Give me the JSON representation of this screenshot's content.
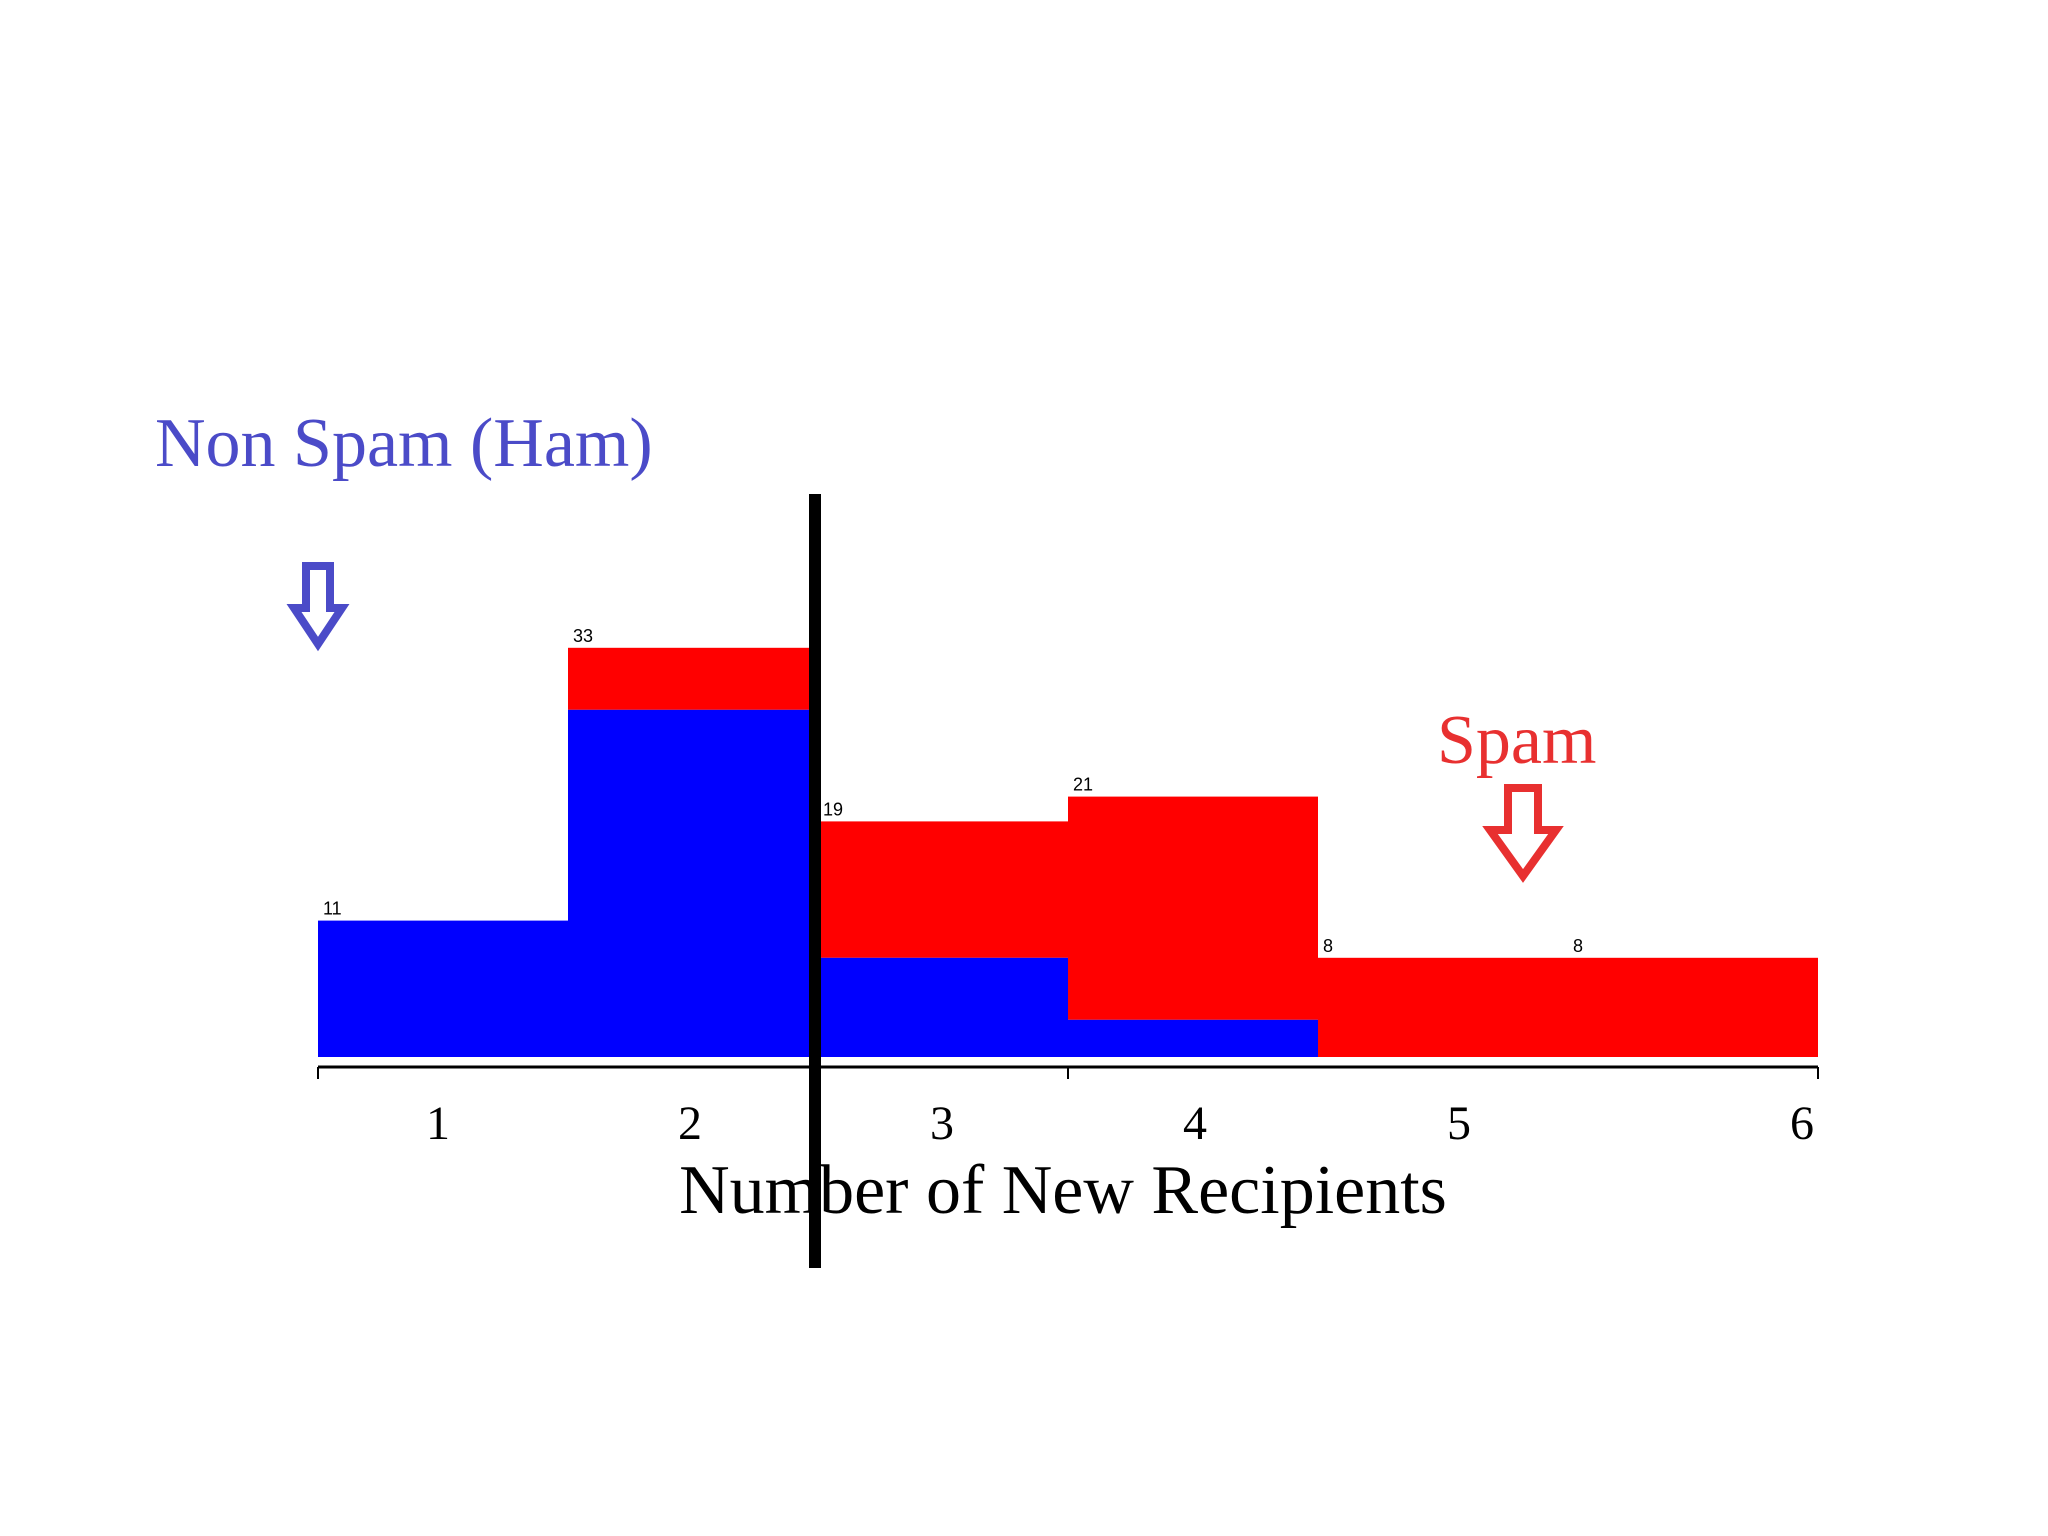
{
  "chart_data": {
    "type": "bar",
    "stacked": true,
    "xlabel": "Number of New Recipients",
    "categories": [
      "1",
      "2",
      "3",
      "4",
      "5",
      "6"
    ],
    "bins": [
      {
        "start": 1,
        "end": 2,
        "total": 11,
        "ham": 11,
        "spam": 0,
        "label": "11"
      },
      {
        "start": 2,
        "end": 3,
        "total": 33,
        "ham": 28,
        "spam": 5,
        "label": "33"
      },
      {
        "start": 3,
        "end": 4,
        "total": 19,
        "ham": 8,
        "spam": 11,
        "label": "19"
      },
      {
        "start": 4,
        "end": 5,
        "total": 21,
        "ham": 3,
        "spam": 18,
        "label": "21"
      },
      {
        "start": 5,
        "end": 6,
        "total": 8,
        "ham": 0,
        "spam": 8,
        "label": "8"
      },
      {
        "start": 6,
        "end": 7,
        "total": 8,
        "ham": 0,
        "spam": 8,
        "label": "8"
      }
    ],
    "series": [
      {
        "name": "Non Spam (Ham)",
        "color": "#0000ff"
      },
      {
        "name": "Spam",
        "color": "#ff0000"
      }
    ],
    "threshold_x": 3,
    "ham_label": "Non Spam (Ham)",
    "spam_label": "Spam",
    "ham_label_color": "#4b4bc8",
    "spam_label_color": "#e83030",
    "ham_arrow": "down-arrow-icon",
    "spam_arrow": "down-arrow-icon"
  }
}
